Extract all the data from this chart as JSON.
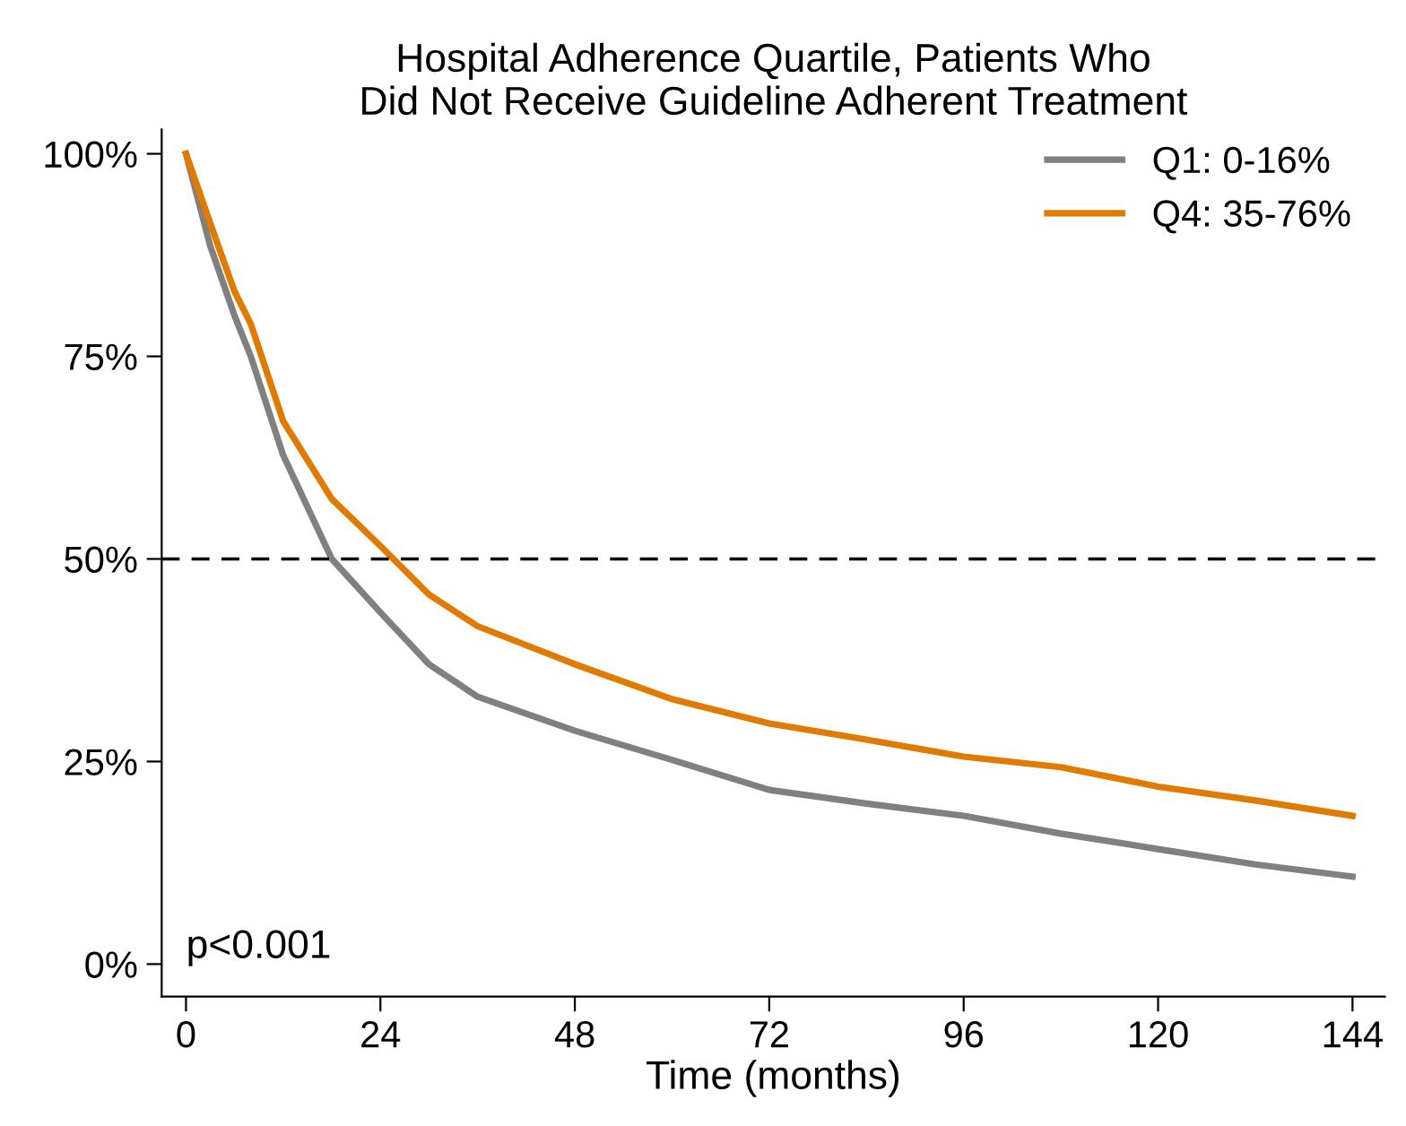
{
  "chart_data": {
    "type": "line",
    "title": "Hospital Adherence Quartile, Patients Who\nDid Not Receive Guideline Adherent Treatment",
    "xlabel": "Time (months)",
    "x": [
      0,
      3,
      6,
      8,
      12,
      18,
      24,
      30,
      36,
      48,
      60,
      72,
      84,
      96,
      108,
      120,
      132,
      144
    ],
    "series": [
      {
        "name": "Q1: 0-16%",
        "color": "#808080",
        "values": [
          100,
          88.6,
          80,
          75,
          62.8,
          50,
          43.4,
          37,
          33,
          28.8,
          25.2,
          21.5,
          19.8,
          18.3,
          16.1,
          14.2,
          12.3,
          10.8
        ]
      },
      {
        "name": "Q4: 35-76%",
        "color": "#e07b00",
        "values": [
          100,
          91.4,
          83,
          79,
          67,
          57.4,
          51.6,
          45.6,
          41.7,
          37,
          32.7,
          29.7,
          27.7,
          25.6,
          24.3,
          21.9,
          20.2,
          18.3
        ]
      }
    ],
    "xlim": [
      -3,
      148
    ],
    "ylim": [
      -4,
      103
    ],
    "xticks": [
      0,
      24,
      48,
      72,
      96,
      120,
      144
    ],
    "yticks": [
      {
        "value": 0,
        "label": "0%"
      },
      {
        "value": 25,
        "label": "25%"
      },
      {
        "value": 50,
        "label": "50%"
      },
      {
        "value": 75,
        "label": "75%"
      },
      {
        "value": 100,
        "label": "100%"
      }
    ],
    "ref_lines": [
      {
        "axis": "y",
        "value": 50,
        "color": "#000000",
        "line_style": "dashed"
      }
    ],
    "annotations": [
      {
        "text": "p<0.001"
      }
    ],
    "legend": "top right",
    "grid": false,
    "marker": "none",
    "line_style": "solid"
  }
}
